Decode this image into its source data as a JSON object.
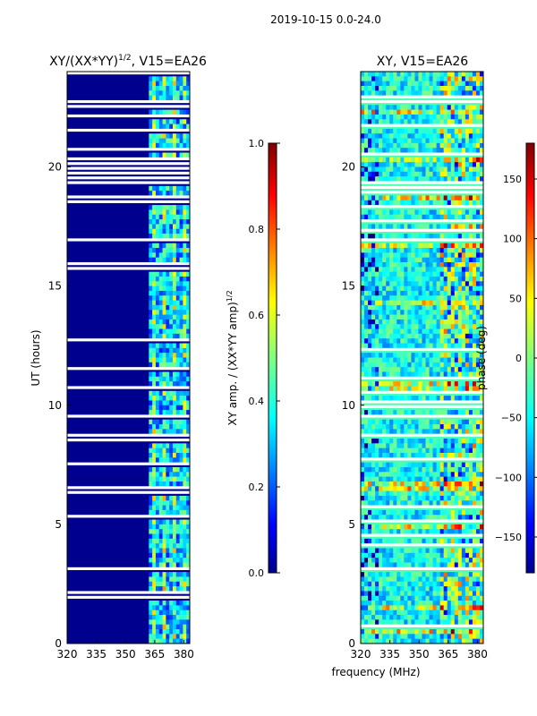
{
  "suptitle": "2019-10-15 0.0-24.0",
  "xlabel_shared": "frequency (MHz)",
  "colors": {
    "low": "#00008f",
    "high": "#800000",
    "gap": "#ffffff"
  },
  "chart_data": [
    {
      "type": "heatmap",
      "title": "XY/(XX*YY)",
      "title_sup": "1/2",
      "title_suffix": ", V15=EA26",
      "ylabel": "UT (hours)",
      "xlim": [
        320,
        383
      ],
      "ylim": [
        0,
        24
      ],
      "xticks": [
        320,
        335,
        350,
        365,
        380
      ],
      "yticks": [
        0,
        5,
        10,
        15,
        20
      ],
      "colorbar": {
        "label": "XY amp. / (XX*YY amp)",
        "label_sup": "1/2",
        "range": [
          0.0,
          1.0
        ],
        "ticks": [
          "0.0",
          "0.2",
          "0.4",
          "0.6",
          "0.8",
          "1.0"
        ]
      }
    },
    {
      "type": "heatmap",
      "title": "XY, V15=EA26",
      "ylabel": "",
      "xlim": [
        320,
        383
      ],
      "ylim": [
        0,
        24
      ],
      "xticks": [
        320,
        335,
        350,
        365,
        380
      ],
      "yticks": [
        0,
        5,
        10,
        15,
        20
      ],
      "colorbar": {
        "label": "phase (deg)",
        "range": [
          -180,
          180
        ],
        "ticks": [
          "−150",
          "−100",
          "−50",
          "0",
          "50",
          "100",
          "150"
        ]
      }
    }
  ]
}
